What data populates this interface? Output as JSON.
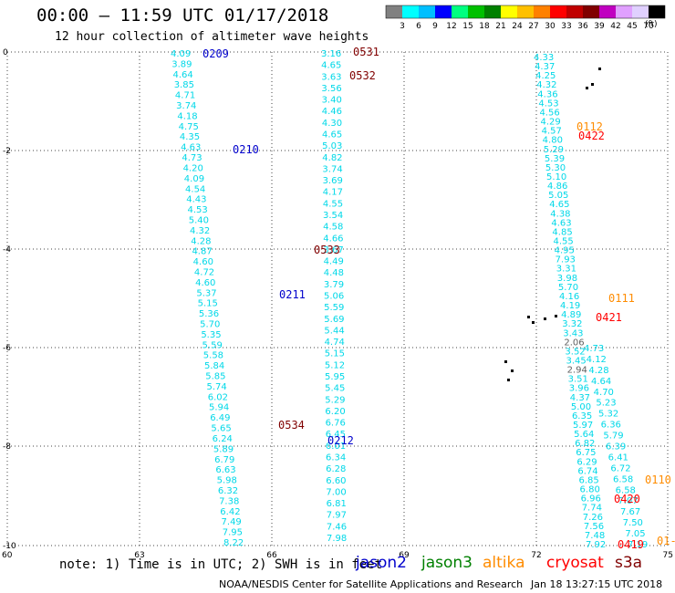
{
  "title": "00:00 – 11:59 UTC 01/17/2018",
  "subtitle": "12 hour collection of altimeter wave heights",
  "note": "note: 1) Time is in UTC; 2) SWH is in feet",
  "credit": "NOAA/NESDIS Center for Satellite Applications and Research",
  "timestamp": "Jan 18 13:27:15 UTC 2018",
  "colorbar": {
    "unit": "(ft)",
    "labels": [
      "3",
      "6",
      "9",
      "12",
      "15",
      "18",
      "21",
      "24",
      "27",
      "30",
      "33",
      "36",
      "39",
      "42",
      "45",
      "70"
    ],
    "colors": [
      "#808080",
      "#00ffff",
      "#00bfff",
      "#0000ff",
      "#00ff80",
      "#00c000",
      "#008000",
      "#ffff00",
      "#ffc000",
      "#ff8000",
      "#ff0000",
      "#c00000",
      "#800000",
      "#c000c0",
      "#e0a0ff",
      "#e0d0ff",
      "#000000"
    ]
  },
  "satellites": [
    {
      "name": "jason2",
      "color": "#0000cc"
    },
    {
      "name": "jason3",
      "color": "#008000"
    },
    {
      "name": "altika",
      "color": "#ff8c00"
    },
    {
      "name": "cryosat",
      "color": "#ff0000"
    },
    {
      "name": "s3a",
      "color": "#800000"
    }
  ],
  "axes": {
    "x_ticks": [
      "60",
      "63",
      "66",
      "69",
      "72",
      "75"
    ],
    "y_ticks": [
      "0",
      "-2",
      "-4",
      "-6",
      "-8",
      "-10"
    ]
  },
  "time_labels": [
    {
      "text": "0209",
      "color": "#0000cc"
    },
    {
      "text": "0210",
      "color": "#0000cc"
    },
    {
      "text": "0211",
      "color": "#0000cc"
    },
    {
      "text": "0212",
      "color": "#0000cc"
    },
    {
      "text": "0531",
      "color": "#800000"
    },
    {
      "text": "0532",
      "color": "#800000"
    },
    {
      "text": "0533",
      "color": "#800000"
    },
    {
      "text": "0534",
      "color": "#800000"
    },
    {
      "text": "0112",
      "color": "#ff8c00"
    },
    {
      "text": "0111",
      "color": "#ff8c00"
    },
    {
      "text": "0110",
      "color": "#ff8c00"
    },
    {
      "text": "01-",
      "color": "#ff8c00"
    },
    {
      "text": "0422",
      "color": "#ff0000"
    },
    {
      "text": "0421",
      "color": "#ff0000"
    },
    {
      "text": "0420",
      "color": "#ff0000"
    },
    {
      "text": "0419",
      "color": "#ff0000"
    }
  ],
  "tracks": {
    "track_a": {
      "color": "#00d8e8",
      "values": [
        "4.09",
        "3.89",
        "4.64",
        "3.85",
        "4.71",
        "3.74",
        "4.18",
        "4.75",
        "4.35",
        "4.63",
        "4.73",
        "4.20",
        "4.09",
        "4.54",
        "4.43",
        "4.53",
        "5.40",
        "4.32",
        "4.28",
        "4.87",
        "4.60",
        "4.72",
        "4.60",
        "5.37",
        "5.15",
        "5.36",
        "5.70",
        "5.35",
        "5.59",
        "5.58",
        "5.84",
        "5.85",
        "5.74",
        "6.02",
        "5.94",
        "6.49",
        "5.65",
        "6.24",
        "5.89",
        "6.79",
        "6.63",
        "5.98",
        "6.32",
        "7.38",
        "6.42",
        "7.49",
        "7.95",
        "8.22"
      ]
    },
    "track_b": {
      "color": "#00d8e8",
      "values": [
        "3.16",
        "4.65",
        "3.63",
        "3.56",
        "3.40",
        "4.46",
        "4.30",
        "4.65",
        "5.03",
        "4.82",
        "3.74",
        "3.69",
        "4.17",
        "4.55",
        "3.54",
        "4.58",
        "4.66",
        "3.67",
        "4.49",
        "4.48",
        "3.79",
        "5.06",
        "5.59",
        "5.69",
        "5.44",
        "4.74",
        "5.15",
        "5.12",
        "5.95",
        "5.45",
        "5.29",
        "6.20",
        "6.76",
        "6.45",
        "6.01",
        "6.34",
        "6.28",
        "6.60",
        "7.00",
        "6.81",
        "7.97",
        "7.46",
        "7.98"
      ]
    },
    "track_c": {
      "color": "#00d8e8",
      "values": [
        "4.33",
        "4.37",
        "4.25",
        "4.32",
        "4.36",
        "4.53",
        "4.56",
        "4.29",
        "4.57",
        "4.80",
        "5.29",
        "5.39",
        "5.30",
        "5.10",
        "4.86",
        "5.05",
        "4.65",
        "4.38",
        "4.63",
        "4.85",
        "4.55",
        "4.95",
        "7.93",
        "3.31",
        "3.98",
        "5.70",
        "4.16",
        "4.19",
        "4.89",
        "3.32",
        "3.43",
        "2.06",
        "3.52",
        "3.45",
        "2.94",
        "3.51",
        "3.96",
        "4.37",
        "5.00",
        "6.35",
        "5.97",
        "5.64",
        "6.82",
        "6.75",
        "6.29",
        "6.74",
        "6.85",
        "6.80",
        "6.96",
        "7.74",
        "7.26",
        "7.56",
        "7.48",
        "7.92"
      ]
    },
    "track_d": {
      "color": "#00d8e8",
      "values": [
        "4.73",
        "4.12",
        "4.28",
        "4.64",
        "4.70",
        "5.23",
        "5.32",
        "6.36",
        "5.79",
        "6.39",
        "6.41",
        "6.72",
        "6.58",
        "6.58",
        "7.07",
        "7.67",
        "7.50",
        "7.05",
        "7.19"
      ]
    },
    "gray_values": [
      "2.06",
      "2.94"
    ]
  }
}
